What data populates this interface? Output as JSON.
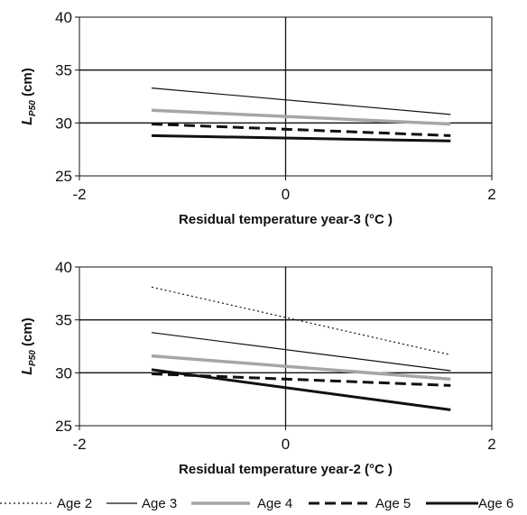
{
  "chart_data": [
    {
      "type": "line",
      "xlabel": "Residual temperature year-3 (°C )",
      "ylabel": "L",
      "ylabel_sub": "P50",
      "ylabel_unit": " (cm)",
      "xlim": [
        -2,
        2
      ],
      "ylim": [
        25,
        40
      ],
      "xticks": [
        -2,
        0,
        2
      ],
      "yticks": [
        25,
        30,
        35,
        40
      ],
      "grid": true,
      "series": [
        {
          "name": "Age 3",
          "x": [
            -1.3,
            1.6
          ],
          "y": [
            33.3,
            30.8
          ],
          "color": "#111111",
          "style": "thin"
        },
        {
          "name": "Age 4",
          "x": [
            -1.3,
            1.6
          ],
          "y": [
            31.2,
            29.9
          ],
          "color": "#a6a6a6",
          "style": "thick"
        },
        {
          "name": "Age 5",
          "x": [
            -1.3,
            1.6
          ],
          "y": [
            29.9,
            28.8
          ],
          "color": "#111111",
          "style": "dashed"
        },
        {
          "name": "Age 6",
          "x": [
            -1.3,
            1.6
          ],
          "y": [
            28.8,
            28.3
          ],
          "color": "#111111",
          "style": "bold"
        }
      ]
    },
    {
      "type": "line",
      "xlabel": "Residual temperature year-2 (°C )",
      "ylabel": "L",
      "ylabel_sub": "P50",
      "ylabel_unit": " (cm)",
      "xlim": [
        -2,
        2
      ],
      "ylim": [
        25,
        40
      ],
      "xticks": [
        -2,
        0,
        2
      ],
      "yticks": [
        25,
        30,
        35,
        40
      ],
      "grid": true,
      "series": [
        {
          "name": "Age 2",
          "x": [
            -1.3,
            1.6
          ],
          "y": [
            38.1,
            31.7
          ],
          "color": "#111111",
          "style": "dotted"
        },
        {
          "name": "Age 3",
          "x": [
            -1.3,
            1.6
          ],
          "y": [
            33.8,
            30.2
          ],
          "color": "#111111",
          "style": "thin"
        },
        {
          "name": "Age 4",
          "x": [
            -1.3,
            1.6
          ],
          "y": [
            31.6,
            29.4
          ],
          "color": "#a6a6a6",
          "style": "thick"
        },
        {
          "name": "Age 5",
          "x": [
            -1.3,
            1.6
          ],
          "y": [
            29.9,
            28.8
          ],
          "color": "#111111",
          "style": "dashed"
        },
        {
          "name": "Age 6",
          "x": [
            -1.3,
            1.6
          ],
          "y": [
            30.3,
            26.5
          ],
          "color": "#111111",
          "style": "bold"
        }
      ]
    }
  ],
  "legend": {
    "placement": "bottom",
    "entries": [
      {
        "label": "Age 2",
        "style": "dotted",
        "color": "#111111"
      },
      {
        "label": "Age 3",
        "style": "thin",
        "color": "#111111"
      },
      {
        "label": "Age 4",
        "style": "thick",
        "color": "#a6a6a6"
      },
      {
        "label": "Age 5",
        "style": "dashed",
        "color": "#111111"
      },
      {
        "label": "Age 6",
        "style": "bold",
        "color": "#111111"
      }
    ]
  }
}
